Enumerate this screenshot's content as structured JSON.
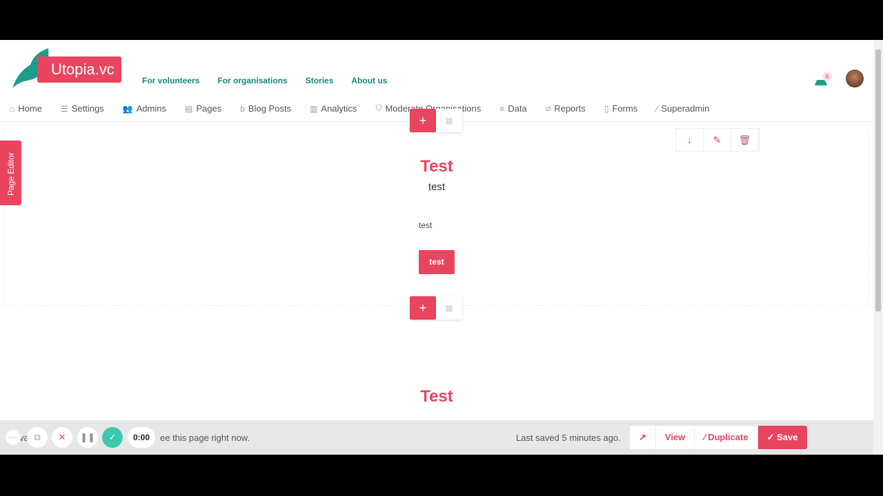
{
  "brand": {
    "name": "Utopia.vc",
    "color": "#e94560",
    "accent": "#14897a"
  },
  "topnav": [
    "For volunteers",
    "For organisations",
    "Stories",
    "About us"
  ],
  "notifications": {
    "count": "6"
  },
  "adminnav": [
    {
      "label": "Home",
      "icon": "home-icon",
      "glyph": "⌂"
    },
    {
      "label": "Settings",
      "icon": "sliders-icon",
      "glyph": "☰"
    },
    {
      "label": "Admins",
      "icon": "users-icon",
      "glyph": "👥"
    },
    {
      "label": "Pages",
      "icon": "pages-icon",
      "glyph": "▤"
    },
    {
      "label": "Blog Posts",
      "icon": "blog-icon",
      "glyph": "b"
    },
    {
      "label": "Analytics",
      "icon": "chart-icon",
      "glyph": "▥"
    },
    {
      "label": "Moderate Organisations",
      "icon": "shield-icon",
      "glyph": "⛉"
    },
    {
      "label": "Data",
      "icon": "database-icon",
      "glyph": "≡"
    },
    {
      "label": "Reports",
      "icon": "reports-icon",
      "glyph": "⧄"
    },
    {
      "label": "Forms",
      "icon": "clipboard-icon",
      "glyph": "▯"
    },
    {
      "label": "Superadmin",
      "icon": "wand-icon",
      "glyph": "⁄"
    }
  ],
  "sidebar_tab": "Page Editor",
  "section1": {
    "title": "Test",
    "subtitle": "test",
    "text": "test",
    "button": "test"
  },
  "section2": {
    "title": "Test"
  },
  "recorder": {
    "time": "0:00"
  },
  "bottom": {
    "message_fragment_1": "va",
    "message_fragment_2": "ee this page right now.",
    "last_saved": "Last saved 5 minutes ago.",
    "view": "View",
    "duplicate": "Duplicate",
    "save": "Save"
  }
}
